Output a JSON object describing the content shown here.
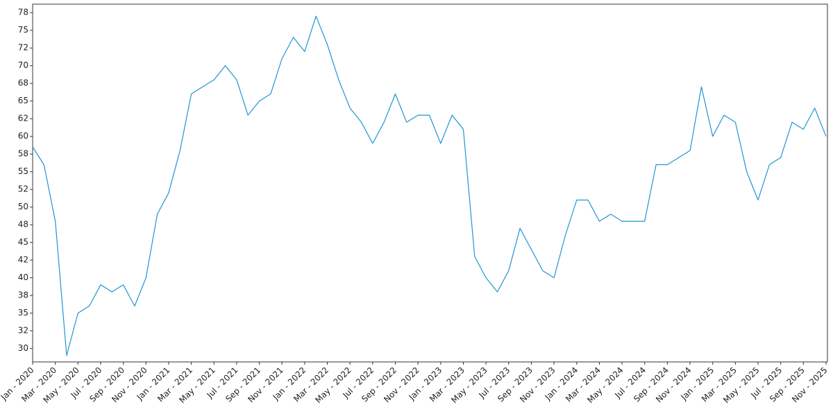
{
  "chart_data": {
    "type": "line",
    "x": [
      "2020-01",
      "2020-02",
      "2020-03",
      "2020-04",
      "2020-05",
      "2020-06",
      "2020-07",
      "2020-08",
      "2020-09",
      "2020-10",
      "2020-11",
      "2020-12",
      "2021-01",
      "2021-02",
      "2021-03",
      "2021-04",
      "2021-05",
      "2021-06",
      "2021-07",
      "2021-08",
      "2021-09",
      "2021-10",
      "2021-11",
      "2021-12",
      "2022-01",
      "2022-02",
      "2022-03",
      "2022-04",
      "2022-05",
      "2022-06",
      "2022-07",
      "2022-08",
      "2022-09",
      "2022-10",
      "2022-11",
      "2022-12",
      "2023-01",
      "2023-02",
      "2023-03",
      "2023-04",
      "2023-05",
      "2023-06",
      "2023-07",
      "2023-08",
      "2023-09",
      "2023-10",
      "2023-11",
      "2023-12",
      "2024-01",
      "2024-02",
      "2024-03",
      "2024-04",
      "2024-05",
      "2024-06",
      "2024-07",
      "2024-08",
      "2024-09",
      "2024-10",
      "2024-11",
      "2024-12",
      "2025-01",
      "2025-02",
      "2025-03",
      "2025-04",
      "2025-05",
      "2025-06",
      "2025-07",
      "2025-08",
      "2025-09",
      "2025-10",
      "2025-11"
    ],
    "series": [
      {
        "color": "#1f94d2",
        "values": [
          58.5,
          56,
          48,
          29,
          35,
          36,
          39,
          38,
          39,
          36,
          40,
          49,
          52,
          58,
          66,
          67,
          68,
          70,
          68,
          63,
          65,
          66,
          71,
          74,
          72,
          77,
          73,
          68,
          64,
          62,
          59,
          62,
          66,
          62,
          63,
          63,
          59,
          63,
          61,
          43,
          40,
          38,
          41,
          47,
          44,
          41,
          40,
          46,
          51,
          51,
          48,
          49,
          48,
          48,
          48,
          56,
          56,
          57,
          58,
          67,
          60,
          63,
          62,
          55,
          51,
          56,
          57,
          62,
          61,
          64,
          60
        ]
      }
    ],
    "xlim": [
      "2020-01",
      "2025-11"
    ],
    "xticks": [
      {
        "value": "2020-01",
        "label": "Jan - 2020"
      },
      {
        "value": "2020-03",
        "label": "Mar - 2020"
      },
      {
        "value": "2020-05",
        "label": "May - 2020"
      },
      {
        "value": "2020-07",
        "label": "Jul - 2020"
      },
      {
        "value": "2020-09",
        "label": "Sep - 2020"
      },
      {
        "value": "2020-11",
        "label": "Nov - 2020"
      },
      {
        "value": "2021-01",
        "label": "Jan - 2021"
      },
      {
        "value": "2021-03",
        "label": "Mar - 2021"
      },
      {
        "value": "2021-05",
        "label": "May - 2021"
      },
      {
        "value": "2021-07",
        "label": "Jul - 2021"
      },
      {
        "value": "2021-09",
        "label": "Sep - 2021"
      },
      {
        "value": "2021-11",
        "label": "Nov - 2021"
      },
      {
        "value": "2022-01",
        "label": "Jan - 2022"
      },
      {
        "value": "2022-03",
        "label": "Mar - 2022"
      },
      {
        "value": "2022-05",
        "label": "May - 2022"
      },
      {
        "value": "2022-07",
        "label": "Jul - 2022"
      },
      {
        "value": "2022-09",
        "label": "Sep - 2022"
      },
      {
        "value": "2022-11",
        "label": "Nov - 2022"
      },
      {
        "value": "2023-01",
        "label": "Jan - 2023"
      },
      {
        "value": "2023-03",
        "label": "Mar - 2023"
      },
      {
        "value": "2023-05",
        "label": "May - 2023"
      },
      {
        "value": "2023-07",
        "label": "Jul - 2023"
      },
      {
        "value": "2023-09",
        "label": "Sep - 2023"
      },
      {
        "value": "2023-11",
        "label": "Nov - 2023"
      },
      {
        "value": "2024-01",
        "label": "Jan - 2024"
      },
      {
        "value": "2024-03",
        "label": "Mar - 2024"
      },
      {
        "value": "2024-05",
        "label": "May - 2024"
      },
      {
        "value": "2024-07",
        "label": "Jul - 2024"
      },
      {
        "value": "2024-09",
        "label": "Sep - 2024"
      },
      {
        "value": "2024-11",
        "label": "Nov - 2024"
      },
      {
        "value": "2025-01",
        "label": "Jan - 2025"
      },
      {
        "value": "2025-03",
        "label": "Mar - 2025"
      },
      {
        "value": "2025-05",
        "label": "May - 2025"
      },
      {
        "value": "2025-07",
        "label": "Jul - 2025"
      },
      {
        "value": "2025-09",
        "label": "Sep - 2025"
      },
      {
        "value": "2025-11",
        "label": "Nov - 2025"
      }
    ],
    "ylim": [
      28.1,
      78.7
    ],
    "yticks": [
      30,
      {
        "value": 32.5,
        "label": "32"
      },
      35,
      {
        "value": 37.5,
        "label": "38"
      },
      40,
      {
        "value": 42.5,
        "label": "42"
      },
      45,
      {
        "value": 47.5,
        "label": "48"
      },
      50,
      {
        "value": 52.5,
        "label": "52"
      },
      55,
      {
        "value": 57.5,
        "label": "58"
      },
      60,
      {
        "value": 62.5,
        "label": "62"
      },
      65,
      {
        "value": 67.5,
        "label": "68"
      },
      70,
      {
        "value": 72.5,
        "label": "72"
      },
      75,
      {
        "value": 77.5,
        "label": "78"
      }
    ]
  }
}
